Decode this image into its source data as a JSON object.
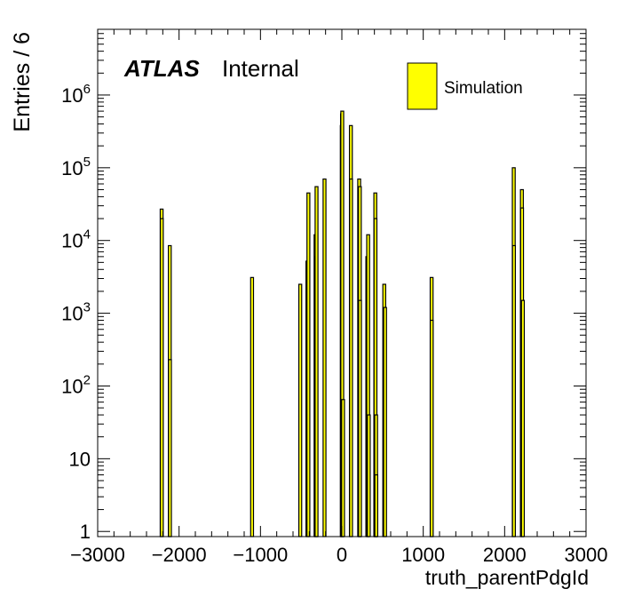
{
  "chart_data": {
    "type": "bar",
    "xlabel": "truth_parentPdgId",
    "ylabel": "Entries / 6",
    "xlim": [
      -3000,
      3000
    ],
    "ylim": [
      0.85,
      8000000
    ],
    "yscale": "log",
    "legend_placement": "top-right",
    "annotation": {
      "atlas": "ATLAS",
      "status": "Internal"
    },
    "x_ticks": [
      -3000,
      -2000,
      -1000,
      0,
      1000,
      2000,
      3000
    ],
    "x_tick_labels": [
      "−3000",
      "−2000",
      "−1000",
      "0",
      "1000",
      "2000",
      "3000"
    ],
    "y_ticks": [
      {
        "value": 1,
        "base": "1",
        "exp": ""
      },
      {
        "value": 10,
        "base": "10",
        "exp": ""
      },
      {
        "value": 100,
        "base": "10",
        "exp": "2"
      },
      {
        "value": 1000,
        "base": "10",
        "exp": "3"
      },
      {
        "value": 10000,
        "base": "10",
        "exp": "4"
      },
      {
        "value": 100000,
        "base": "10",
        "exp": "5"
      },
      {
        "value": 1000000,
        "base": "10",
        "exp": "6"
      }
    ],
    "series": [
      {
        "name": "Simulation",
        "color": "#ffff00",
        "bars": [
          {
            "x": -2214,
            "y": 27000
          },
          {
            "x": -2212,
            "y": 20000
          },
          {
            "x": -2114,
            "y": 8500
          },
          {
            "x": -2112,
            "y": 230
          },
          {
            "x": -1103,
            "y": 3100
          },
          {
            "x": -511,
            "y": 2500
          },
          {
            "x": -423,
            "y": 5200
          },
          {
            "x": -411,
            "y": 45000
          },
          {
            "x": -323,
            "y": 12000
          },
          {
            "x": -313,
            "y": 6000
          },
          {
            "x": -311,
            "y": 55000
          },
          {
            "x": -213,
            "y": 70000
          },
          {
            "x": -1,
            "y": 380000
          },
          {
            "x": 2,
            "y": 550000
          },
          {
            "x": 5,
            "y": 600000
          },
          {
            "x": 15,
            "y": 65
          },
          {
            "x": 111,
            "y": 380000
          },
          {
            "x": 113,
            "y": 70000
          },
          {
            "x": 213,
            "y": 70000
          },
          {
            "x": 221,
            "y": 55000
          },
          {
            "x": 223,
            "y": 1500
          },
          {
            "x": 313,
            "y": 6000
          },
          {
            "x": 323,
            "y": 12000
          },
          {
            "x": 331,
            "y": 40
          },
          {
            "x": 411,
            "y": 45000
          },
          {
            "x": 413,
            "y": 20000
          },
          {
            "x": 421,
            "y": 40
          },
          {
            "x": 423,
            "y": 6
          },
          {
            "x": 521,
            "y": 2500
          },
          {
            "x": 531,
            "y": 1200
          },
          {
            "x": 1103,
            "y": 3100
          },
          {
            "x": 1104,
            "y": 800
          },
          {
            "x": 2112,
            "y": 100000
          },
          {
            "x": 2114,
            "y": 8500
          },
          {
            "x": 2212,
            "y": 50000
          },
          {
            "x": 2214,
            "y": 28000
          },
          {
            "x": 2224,
            "y": 1500
          }
        ]
      }
    ]
  }
}
